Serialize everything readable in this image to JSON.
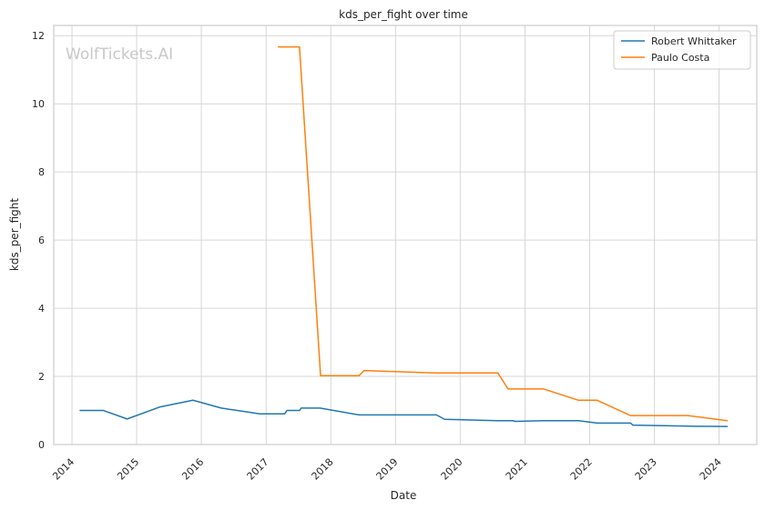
{
  "chart_data": {
    "type": "line",
    "title": "kds_per_fight over time",
    "xlabel": "Date",
    "ylabel": "kds_per_fight",
    "watermark": "WolfTickets.AI",
    "grid": true,
    "legend_position": "top-right",
    "x_ticks": [
      "2014",
      "2015",
      "2016",
      "2017",
      "2018",
      "2019",
      "2020",
      "2021",
      "2022",
      "2023",
      "2024"
    ],
    "y_ticks": [
      "0",
      "2",
      "4",
      "6",
      "8",
      "10",
      "12"
    ],
    "xlim": [
      "2013-09-20",
      "2024-08-01"
    ],
    "ylim": [
      0,
      12.3
    ],
    "series": [
      {
        "name": "Robert Whittaker",
        "color": "#1f77b4",
        "points": [
          [
            "2014-02-15",
            1.0
          ],
          [
            "2014-06-28",
            1.0
          ],
          [
            "2014-11-08",
            0.75
          ],
          [
            "2015-05-10",
            1.1
          ],
          [
            "2015-11-15",
            1.3
          ],
          [
            "2016-04-23",
            1.07
          ],
          [
            "2016-11-26",
            0.9
          ],
          [
            "2017-04-15",
            0.9
          ],
          [
            "2017-04-28",
            1.0
          ],
          [
            "2017-07-08",
            1.0
          ],
          [
            "2017-07-18",
            1.07
          ],
          [
            "2017-11-01",
            1.07
          ],
          [
            "2018-06-09",
            0.87
          ],
          [
            "2019-08-20",
            0.87
          ],
          [
            "2019-10-05",
            0.74
          ],
          [
            "2020-07-25",
            0.7
          ],
          [
            "2020-10-24",
            0.7
          ],
          [
            "2020-11-05",
            0.68
          ],
          [
            "2021-04-17",
            0.7
          ],
          [
            "2021-10-30",
            0.7
          ],
          [
            "2022-02-12",
            0.63
          ],
          [
            "2022-08-20",
            0.63
          ],
          [
            "2022-09-01",
            0.57
          ],
          [
            "2023-07-08",
            0.54
          ],
          [
            "2024-02-17",
            0.53
          ]
        ]
      },
      {
        "name": "Paulo Costa",
        "color": "#ff7f0e",
        "points": [
          [
            "2017-03-11",
            11.67
          ],
          [
            "2017-07-08",
            11.67
          ],
          [
            "2017-11-04",
            2.02
          ],
          [
            "2018-06-09",
            2.02
          ],
          [
            "2018-07-07",
            2.17
          ],
          [
            "2019-08-17",
            2.1
          ],
          [
            "2020-08-01",
            2.1
          ],
          [
            "2020-09-27",
            1.63
          ],
          [
            "2021-04-17",
            1.63
          ],
          [
            "2021-10-30",
            1.3
          ],
          [
            "2022-02-12",
            1.3
          ],
          [
            "2022-08-20",
            0.85
          ],
          [
            "2023-07-08",
            0.85
          ],
          [
            "2024-02-17",
            0.7
          ]
        ]
      }
    ]
  }
}
